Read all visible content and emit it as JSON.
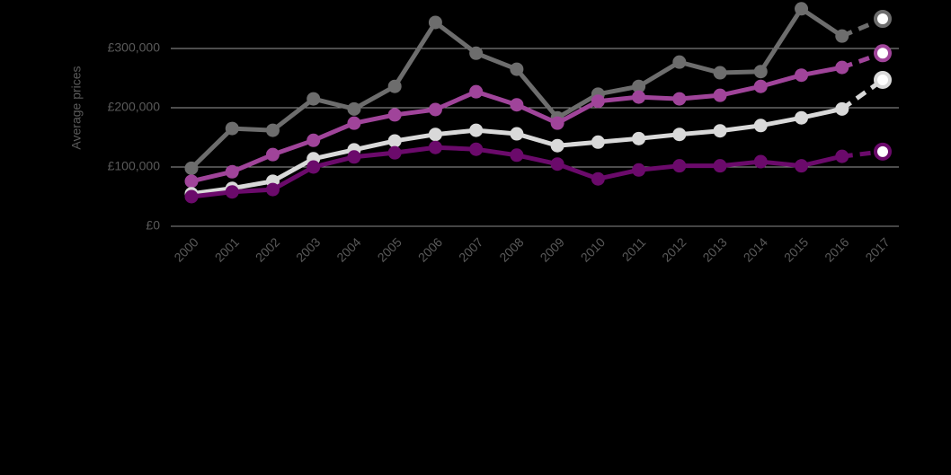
{
  "chart_data": {
    "type": "line",
    "y_label": "Average prices",
    "categories": [
      "2000",
      "2001",
      "2002",
      "2003",
      "2004",
      "2005",
      "2006",
      "2007",
      "2008",
      "2009",
      "2010",
      "2011",
      "2012",
      "2013",
      "2014",
      "2015",
      "2016",
      "2017"
    ],
    "ylim": [
      0,
      370000
    ],
    "yticks": [
      {
        "value": 0,
        "label": "£0"
      },
      {
        "value": 100000,
        "label": "£100,000"
      },
      {
        "value": 200000,
        "label": "£200,000"
      },
      {
        "value": 300000,
        "label": "£300,000"
      }
    ],
    "grid": true,
    "dashed_last_segment": true,
    "series": [
      {
        "color": "#6d6d6d",
        "values": [
          98000,
          165000,
          162000,
          215000,
          198000,
          236000,
          344000,
          292000,
          265000,
          183000,
          223000,
          236000,
          277000,
          259000,
          261000,
          367000,
          321000,
          350000
        ]
      },
      {
        "color": "#a0449a",
        "values": [
          76000,
          92000,
          121000,
          145000,
          174000,
          188000,
          197000,
          227000,
          205000,
          174000,
          211000,
          218000,
          215000,
          221000,
          236000,
          255000,
          268000,
          292000
        ]
      },
      {
        "color": "#d9d9d9",
        "values": [
          55000,
          64000,
          76000,
          114000,
          129000,
          144000,
          155000,
          162000,
          156000,
          136000,
          142000,
          148000,
          155000,
          161000,
          170000,
          183000,
          198000,
          247000
        ]
      },
      {
        "color": "#6b0a6b",
        "values": [
          50000,
          58000,
          62000,
          100000,
          117000,
          124000,
          133000,
          130000,
          120000,
          105000,
          80000,
          95000,
          102000,
          102000,
          109000,
          102000,
          118000,
          126000
        ]
      }
    ]
  }
}
